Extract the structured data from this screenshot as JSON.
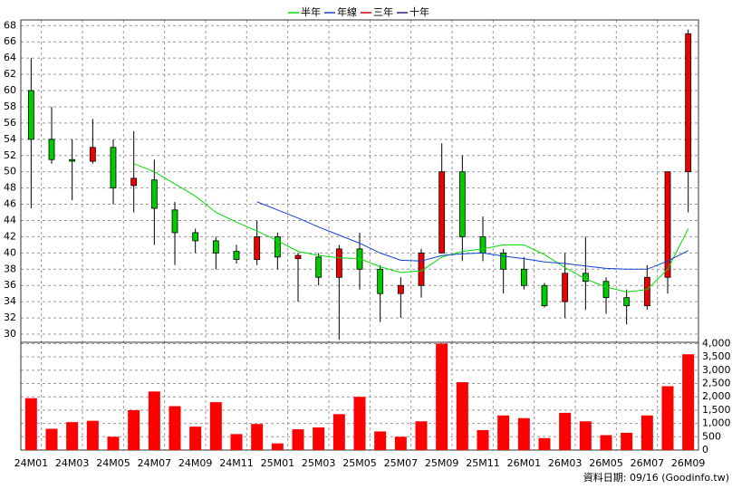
{
  "chart_data": {
    "type": "candlestick",
    "categories": [
      "24M01",
      null,
      "24M03",
      null,
      "24M05",
      null,
      "24M07",
      null,
      "24M09",
      null,
      "24M11",
      null,
      "25M01",
      null,
      "25M03",
      null,
      "25M05",
      null,
      "25M07",
      null,
      "25M09",
      null,
      "25M11",
      null,
      "26M01",
      null,
      "26M03",
      null,
      "26M05",
      null,
      "26M07",
      null,
      "26M09"
    ],
    "open": [
      60,
      54,
      51.5,
      51.3,
      53,
      48.3,
      49,
      45.3,
      42.5,
      41.5,
      40.2,
      39.2,
      42,
      39.3,
      39.5,
      37,
      40.5,
      38,
      35,
      36,
      40,
      50,
      42,
      40,
      38,
      36,
      34,
      37.5,
      36.5,
      34.5,
      33.5,
      37,
      50
    ],
    "high": [
      64,
      58,
      54,
      56.5,
      54,
      55,
      51.5,
      46.3,
      43,
      42,
      41,
      44,
      42.5,
      40,
      40,
      41,
      42.5,
      38.5,
      37,
      40.5,
      53.5,
      52,
      44.5,
      40.5,
      39.5,
      36.3,
      40,
      42,
      37,
      35.5,
      38.5,
      50,
      67.5
    ],
    "low": [
      45.5,
      51,
      46.5,
      51,
      46,
      45,
      41,
      38.5,
      40,
      38,
      38.7,
      38.5,
      38,
      34,
      36,
      29.3,
      35.5,
      31.5,
      32,
      34.5,
      40,
      39,
      39,
      35,
      35.5,
      33.3,
      32,
      33,
      32.5,
      31.2,
      33,
      35,
      45
    ],
    "close": [
      54,
      51.5,
      51.3,
      53,
      48,
      49.2,
      45.5,
      42.5,
      41.5,
      40,
      39.2,
      42,
      39.5,
      39.7,
      37,
      40.5,
      38,
      35,
      36,
      40,
      50,
      42,
      40,
      38,
      36,
      33.5,
      37.5,
      36.5,
      34.5,
      33.5,
      37,
      50,
      67
    ],
    "up_color": "#ee0000",
    "down_color": "#00cc00",
    "series": [
      {
        "name": "半年",
        "color": "#00dd00",
        "values": [
          null,
          null,
          null,
          null,
          null,
          51,
          50,
          48.5,
          47,
          45,
          43.8,
          42.7,
          41.5,
          40.2,
          39.7,
          39.4,
          39.3,
          38.3,
          37.6,
          37.8,
          39.5,
          40.2,
          40.5,
          41,
          41,
          39.8,
          38.2,
          36.8,
          35.8,
          35.2,
          35.5,
          38,
          43
        ]
      },
      {
        "name": "年線",
        "color": "#1040d0",
        "values": [
          null,
          null,
          null,
          null,
          null,
          null,
          null,
          null,
          null,
          null,
          null,
          46.3,
          45.3,
          44.3,
          43.2,
          42.2,
          41.2,
          40,
          39.1,
          39,
          39.7,
          39.9,
          40,
          39.6,
          39.3,
          38.9,
          38.7,
          38.4,
          38.1,
          38,
          38,
          39,
          40.3
        ]
      },
      {
        "name": "三年",
        "color": "#cc0000",
        "values": [
          null,
          null,
          null,
          null,
          null,
          null,
          null,
          null,
          null,
          null,
          null,
          null,
          null,
          null,
          null,
          null,
          null,
          null,
          null,
          null,
          null,
          null,
          null,
          null,
          null,
          null,
          null,
          null,
          null,
          null,
          null,
          null,
          null
        ]
      },
      {
        "name": "十年",
        "color": "#3020a0",
        "values": [
          null,
          null,
          null,
          null,
          null,
          null,
          null,
          null,
          null,
          null,
          null,
          null,
          null,
          null,
          null,
          null,
          null,
          null,
          null,
          null,
          null,
          null,
          null,
          null,
          null,
          null,
          null,
          null,
          null,
          null,
          null,
          null,
          null
        ]
      }
    ],
    "ylim": [
      29,
      68.7
    ],
    "yticks": [
      30,
      32,
      34,
      36,
      38,
      40,
      42,
      44,
      46,
      48,
      50,
      52,
      54,
      56,
      58,
      60,
      62,
      64,
      66,
      68
    ],
    "grid": true,
    "volume": {
      "color": "#ff0000",
      "values": [
        1950,
        800,
        1050,
        1100,
        500,
        1500,
        2200,
        1650,
        880,
        1800,
        600,
        980,
        250,
        780,
        850,
        1350,
        2000,
        700,
        500,
        1080,
        4000,
        2550,
        750,
        1300,
        1200,
        450,
        1400,
        1080,
        560,
        650,
        1300,
        2400,
        3600
      ],
      "ylim": [
        0,
        4050
      ],
      "yticks": [
        0,
        500,
        {
          "value": 1000,
          "label": "1,000"
        },
        {
          "value": 1500,
          "label": "1,500"
        },
        {
          "value": 2000,
          "label": "2,000"
        },
        {
          "value": 2500,
          "label": "2,500"
        },
        {
          "value": 3000,
          "label": "3,000"
        },
        {
          "value": 3500,
          "label": "3,500"
        },
        {
          "value": 4000,
          "label": "4,000"
        }
      ]
    },
    "source": "資料日期: 09/16 (Goodinfo.tw)"
  }
}
